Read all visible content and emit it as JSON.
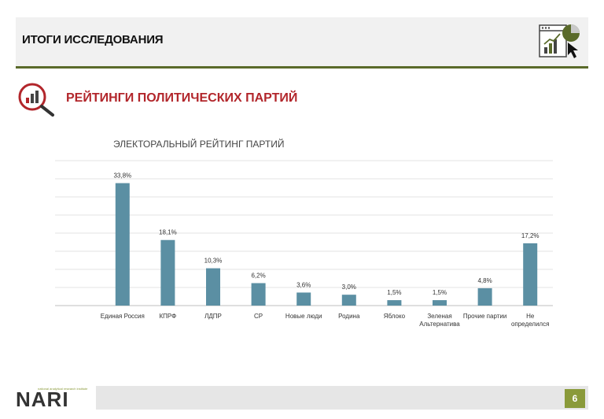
{
  "header": {
    "title": "ИТОГИ ИССЛЕДОВАНИЯ"
  },
  "section": {
    "title": "РЕЙТИНГИ ПОЛИТИЧЕСКИХ ПАРТИЙ"
  },
  "footer": {
    "page_number": "6",
    "logo_text": "NARI",
    "logo_tagline": "national analytical research institute"
  },
  "colors": {
    "bar": "#5b8fa3",
    "accent_red": "#b2262b",
    "rule": "#5a6a2a",
    "badge": "#8a9a3a"
  },
  "icons": [
    "analytics-window-icon",
    "magnifier-chart-icon"
  ],
  "chart_data": {
    "type": "bar",
    "title": "ЭЛЕКТОРАЛЬНЫЙ РЕЙТИНГ ПАРТИЙ",
    "categories": [
      [
        "Единая Россия"
      ],
      [
        "КПРФ"
      ],
      [
        "ЛДПР"
      ],
      [
        "СР"
      ],
      [
        "Новые люди"
      ],
      [
        "Родина"
      ],
      [
        "Яблоко"
      ],
      [
        "Зеленая",
        "Альтернатива"
      ],
      [
        "Прочие партии"
      ],
      [
        "Не",
        "определился"
      ]
    ],
    "values": [
      33.8,
      18.1,
      10.3,
      6.2,
      3.6,
      3.0,
      1.5,
      1.5,
      4.8,
      17.2
    ],
    "value_labels": [
      "33,8%",
      "18,1%",
      "10,3%",
      "6,2%",
      "3,6%",
      "3,0%",
      "1,5%",
      "1,5%",
      "4,8%",
      "17,2%"
    ],
    "ylim": [
      0,
      40
    ],
    "grid": true,
    "legend": "none"
  }
}
